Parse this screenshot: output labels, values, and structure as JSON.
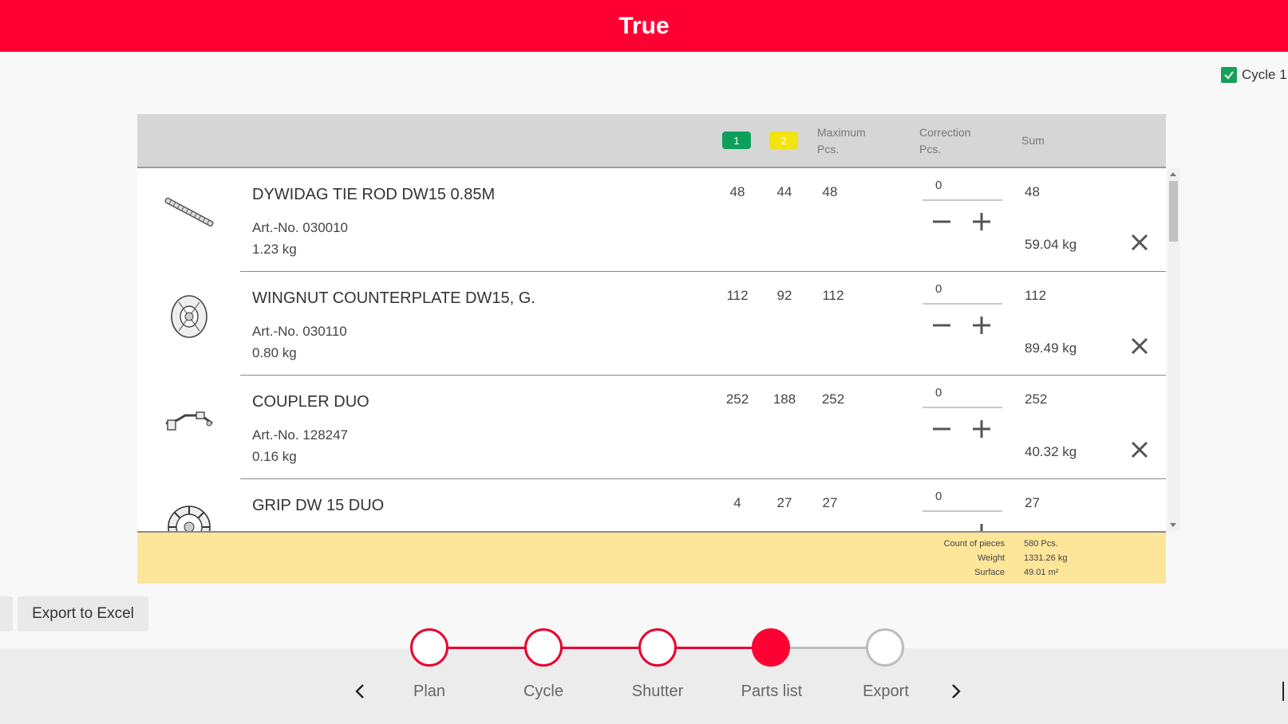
{
  "header": {
    "title": "True"
  },
  "cycle_toggle": {
    "label": "Cycle 1",
    "checked": true
  },
  "table": {
    "columns": {
      "badge_1": "1",
      "badge_2": "2",
      "maximum": "Maximum",
      "maximum_unit": "Pcs.",
      "correction": "Correction",
      "correction_unit": "Pcs.",
      "sum": "Sum"
    },
    "rows": [
      {
        "name": "DYWIDAG TIE ROD DW15 0.85M",
        "art_no": "Art.-No. 030010",
        "weight": "1.23 kg",
        "c1": "48",
        "c2": "44",
        "max": "48",
        "correction": "0",
        "sum": "48",
        "sum_weight": "59.04 kg",
        "icon": "tie-rod-icon"
      },
      {
        "name": "WINGNUT COUNTERPLATE DW15, G.",
        "art_no": "Art.-No. 030110",
        "weight": "0.80 kg",
        "c1": "112",
        "c2": "92",
        "max": "112",
        "correction": "0",
        "sum": "112",
        "sum_weight": "89.49 kg",
        "icon": "wingnut-icon"
      },
      {
        "name": "COUPLER DUO",
        "art_no": "Art.-No. 128247",
        "weight": "0.16 kg",
        "c1": "252",
        "c2": "188",
        "max": "252",
        "correction": "0",
        "sum": "252",
        "sum_weight": "40.32 kg",
        "icon": "coupler-icon"
      },
      {
        "name": "GRIP DW 15 DUO",
        "art_no": "",
        "weight": "",
        "c1": "4",
        "c2": "27",
        "max": "27",
        "correction": "0",
        "sum": "27",
        "sum_weight": "",
        "icon": "grip-icon"
      }
    ],
    "totals": {
      "count_label": "Count of pieces",
      "count_value": "580 Pcs.",
      "weight_label": "Weight",
      "weight_value": "1331.26 kg",
      "surface_label": "Surface",
      "surface_value": "49.01 m²"
    }
  },
  "actions": {
    "export_excel": "Export to Excel"
  },
  "wizard": {
    "steps": [
      {
        "label": "Plan",
        "state": "done"
      },
      {
        "label": "Cycle",
        "state": "done"
      },
      {
        "label": "Shutter",
        "state": "done"
      },
      {
        "label": "Parts list",
        "state": "active"
      },
      {
        "label": "Export",
        "state": "todo"
      }
    ]
  },
  "colors": {
    "brand_red": "#ff0033",
    "badge_green": "#0ea05b",
    "badge_yellow": "#f3e30f",
    "totals_bg": "#fde59a"
  }
}
